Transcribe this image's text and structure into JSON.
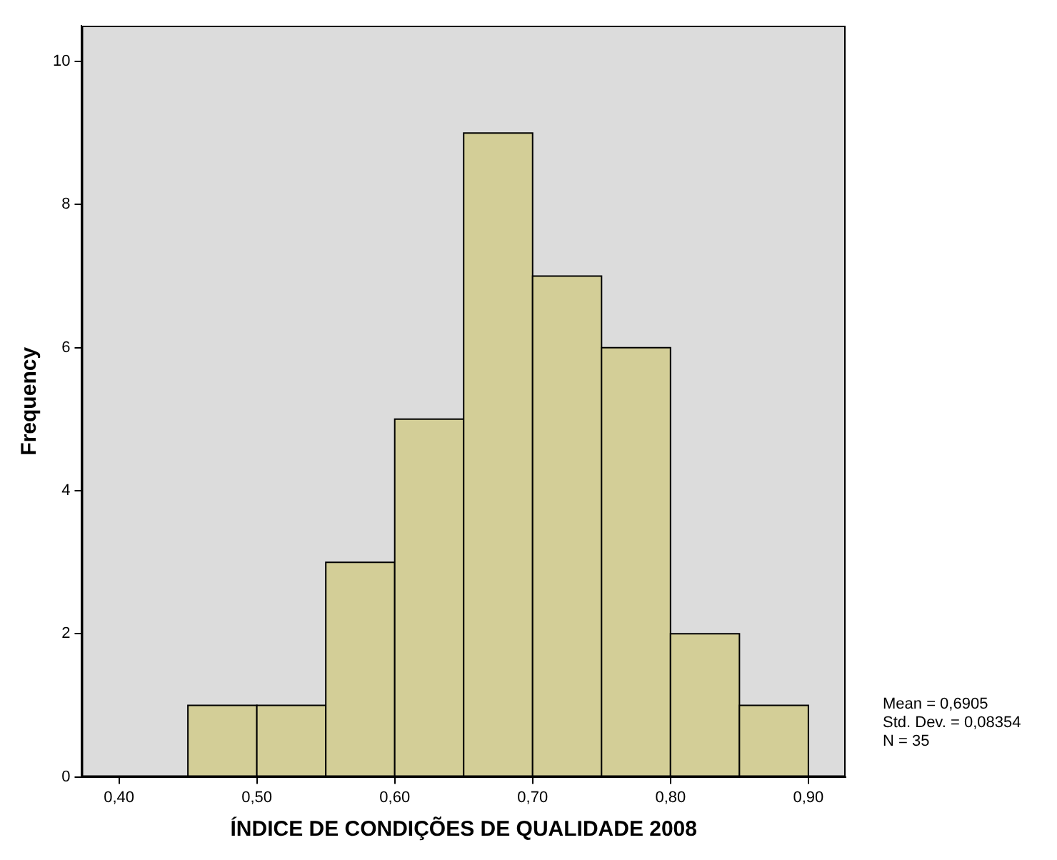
{
  "chart_data": {
    "type": "histogram",
    "xlabel": "ÍNDICE DE CONDIÇÕES DE QUALIDADE 2008",
    "ylabel": "Frequency",
    "bins": [
      0.45,
      0.5,
      0.55,
      0.6,
      0.65,
      0.7,
      0.75,
      0.8,
      0.85,
      0.9
    ],
    "values": [
      1,
      1,
      3,
      5,
      9,
      7,
      6,
      2,
      1
    ],
    "color": "#d3ce97",
    "xlim": [
      0.373,
      0.927
    ],
    "xticks": [
      {
        "value": 0.4,
        "label": "0,40"
      },
      {
        "value": 0.5,
        "label": "0,50"
      },
      {
        "value": 0.6,
        "label": "0,60"
      },
      {
        "value": 0.7,
        "label": "0,70"
      },
      {
        "value": 0.8,
        "label": "0,80"
      },
      {
        "value": 0.9,
        "label": "0,90"
      }
    ],
    "ylim": [
      0,
      10.5
    ],
    "yticks": [
      0,
      2,
      4,
      6,
      8,
      10
    ],
    "annotations": [
      "Mean = 0,6905",
      "Std. Dev. = 0,08354",
      "N = 35"
    ],
    "grid": false,
    "legend": false
  }
}
